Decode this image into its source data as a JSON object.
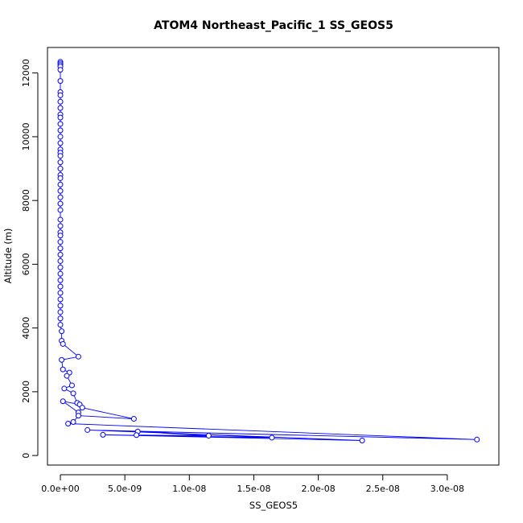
{
  "chart_data": {
    "type": "scatter",
    "title": "ATOM4 Northeast_Pacific_1 SS_GEOS5",
    "xlabel": "SS_GEOS5",
    "ylabel": "Altitude (m)",
    "xlim": [
      -1e-09,
      3.4e-08
    ],
    "ylim": [
      -300,
      12800
    ],
    "x_ticks": [
      0,
      5e-09,
      1e-08,
      1.5e-08,
      2e-08,
      2.5e-08,
      3e-08
    ],
    "x_tick_labels": [
      "0.0e+00",
      "5.0e-09",
      "1.0e-08",
      "1.5e-08",
      "2.0e-08",
      "2.5e-08",
      "3.0e-08"
    ],
    "y_ticks": [
      0,
      2000,
      4000,
      6000,
      8000,
      10000,
      12000
    ],
    "y_tick_labels": [
      "0",
      "2000",
      "4000",
      "6000",
      "8000",
      "10000",
      "12000"
    ],
    "series_color": "#0000ff",
    "marker": "open-circle",
    "connected": true,
    "points": [
      [
        0,
        12350
      ],
      [
        0,
        12300
      ],
      [
        0,
        12250
      ],
      [
        0,
        12200
      ],
      [
        0,
        12100
      ],
      [
        0,
        11750
      ],
      [
        0,
        11400
      ],
      [
        0,
        11300
      ],
      [
        0,
        11100
      ],
      [
        0,
        10900
      ],
      [
        0,
        10700
      ],
      [
        0,
        10600
      ],
      [
        0,
        10400
      ],
      [
        0,
        10200
      ],
      [
        0,
        10000
      ],
      [
        0,
        9800
      ],
      [
        0,
        9600
      ],
      [
        0,
        9500
      ],
      [
        0,
        9400
      ],
      [
        0,
        9200
      ],
      [
        0,
        9000
      ],
      [
        0,
        8800
      ],
      [
        0,
        8700
      ],
      [
        0,
        8500
      ],
      [
        0,
        8300
      ],
      [
        0,
        8100
      ],
      [
        0,
        7900
      ],
      [
        0,
        7700
      ],
      [
        0,
        7400
      ],
      [
        0,
        7200
      ],
      [
        0,
        7000
      ],
      [
        0,
        6900
      ],
      [
        0,
        6700
      ],
      [
        0,
        6500
      ],
      [
        0,
        6300
      ],
      [
        0,
        6100
      ],
      [
        0,
        5900
      ],
      [
        0,
        5700
      ],
      [
        0,
        5500
      ],
      [
        0,
        5300
      ],
      [
        0,
        5100
      ],
      [
        0,
        4900
      ],
      [
        0,
        4700
      ],
      [
        0,
        4500
      ],
      [
        0,
        4300
      ],
      [
        0,
        4100
      ],
      [
        1e-10,
        3900
      ],
      [
        1e-10,
        3600
      ],
      [
        2e-10,
        3500
      ],
      [
        1.4e-09,
        3100
      ],
      [
        1e-10,
        3000
      ],
      [
        2e-10,
        2700
      ],
      [
        7e-10,
        2600
      ],
      [
        5e-10,
        2500
      ],
      [
        9e-10,
        2200
      ],
      [
        3e-10,
        2100
      ],
      [
        1e-09,
        1950
      ],
      [
        1.3e-09,
        1650
      ],
      [
        1.5e-09,
        1600
      ],
      [
        2e-10,
        1700
      ],
      [
        1.4e-09,
        1350
      ],
      [
        1.7e-09,
        1500
      ],
      [
        5.7e-09,
        1150
      ],
      [
        1.4e-09,
        1250
      ],
      [
        1e-09,
        1050
      ],
      [
        6e-10,
        1000
      ],
      [
        3.23e-08,
        500
      ],
      [
        2.1e-09,
        800
      ],
      [
        2.34e-08,
        470
      ],
      [
        3.3e-09,
        650
      ],
      [
        1.64e-08,
        560
      ],
      [
        6e-09,
        750
      ],
      [
        1.15e-08,
        620
      ],
      [
        5.9e-09,
        640
      ]
    ]
  }
}
